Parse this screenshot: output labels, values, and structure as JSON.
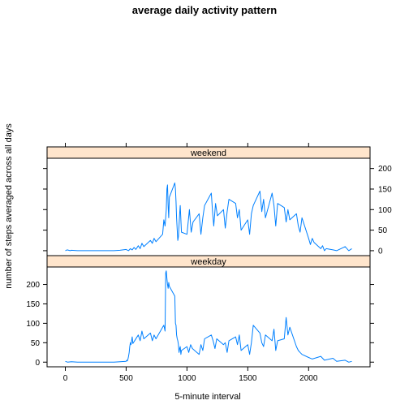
{
  "chart_data": {
    "type": "line",
    "title": "average daily activity pattern",
    "xlabel": "5-minute interval",
    "ylabel": "number of steps averaged across all days",
    "xlim": [
      -150,
      2505
    ],
    "xticks": [
      0,
      500,
      1000,
      1500,
      2000
    ],
    "yticks": [
      0,
      50,
      100,
      150,
      200
    ],
    "panels": [
      {
        "name": "weekend",
        "ylim": [
          -12,
          225
        ],
        "tick_side": "right",
        "x": [
          0,
          15,
          40,
          50,
          100,
          200,
          300,
          400,
          450,
          500,
          520,
          535,
          550,
          565,
          580,
          600,
          615,
          630,
          645,
          700,
          715,
          730,
          745,
          800,
          810,
          820,
          830,
          835,
          840,
          845,
          850,
          855,
          900,
          905,
          910,
          915,
          920,
          925,
          930,
          935,
          940,
          945,
          950,
          955,
          1000,
          1010,
          1020,
          1035,
          1050,
          1100,
          1115,
          1130,
          1145,
          1200,
          1210,
          1220,
          1235,
          1250,
          1300,
          1315,
          1330,
          1345,
          1400,
          1415,
          1430,
          1445,
          1500,
          1515,
          1530,
          1545,
          1600,
          1615,
          1630,
          1645,
          1700,
          1715,
          1730,
          1745,
          1800,
          1815,
          1830,
          1845,
          1900,
          1915,
          1930,
          1945,
          2000,
          2015,
          2030,
          2045,
          2100,
          2115,
          2130,
          2145,
          2200,
          2230,
          2300,
          2330,
          2355
        ],
        "y": [
          0,
          2,
          0,
          1,
          0,
          0,
          0,
          0,
          1,
          3,
          0,
          5,
          2,
          8,
          3,
          12,
          5,
          18,
          10,
          25,
          18,
          30,
          22,
          40,
          75,
          60,
          100,
          150,
          160,
          110,
          80,
          130,
          165,
          150,
          120,
          80,
          50,
          25,
          35,
          60,
          90,
          110,
          75,
          45,
          40,
          70,
          100,
          45,
          70,
          90,
          40,
          80,
          110,
          140,
          95,
          60,
          115,
          85,
          100,
          55,
          95,
          125,
          115,
          80,
          100,
          50,
          75,
          40,
          90,
          110,
          145,
          95,
          125,
          80,
          140,
          110,
          60,
          115,
          105,
          70,
          100,
          75,
          90,
          60,
          45,
          80,
          30,
          15,
          30,
          20,
          5,
          12,
          0,
          5,
          2,
          0,
          10,
          0,
          5
        ]
      },
      {
        "name": "weekday",
        "ylim": [
          -12,
          245
        ],
        "tick_side": "left",
        "x": [
          0,
          20,
          50,
          100,
          200,
          300,
          400,
          450,
          500,
          505,
          510,
          515,
          520,
          525,
          530,
          535,
          540,
          545,
          550,
          555,
          600,
          615,
          630,
          645,
          700,
          715,
          730,
          745,
          800,
          810,
          820,
          825,
          830,
          835,
          840,
          845,
          850,
          855,
          900,
          905,
          910,
          915,
          920,
          925,
          930,
          935,
          940,
          945,
          950,
          955,
          1000,
          1015,
          1030,
          1045,
          1100,
          1115,
          1130,
          1145,
          1200,
          1215,
          1230,
          1245,
          1300,
          1315,
          1330,
          1345,
          1400,
          1415,
          1430,
          1445,
          1500,
          1515,
          1530,
          1545,
          1600,
          1615,
          1630,
          1645,
          1700,
          1715,
          1730,
          1745,
          1800,
          1815,
          1830,
          1845,
          1900,
          1915,
          1930,
          1945,
          2000,
          2030,
          2100,
          2130,
          2200,
          2230,
          2300,
          2330,
          2355
        ],
        "y": [
          2,
          0,
          1,
          0,
          0,
          0,
          0,
          1,
          2,
          5,
          3,
          8,
          15,
          25,
          40,
          50,
          45,
          55,
          65,
          48,
          70,
          55,
          80,
          60,
          75,
          55,
          70,
          60,
          90,
          95,
          80,
          230,
          235,
          215,
          200,
          190,
          205,
          195,
          170,
          100,
          95,
          70,
          60,
          55,
          45,
          25,
          35,
          40,
          20,
          30,
          40,
          25,
          45,
          35,
          20,
          45,
          30,
          60,
          70,
          55,
          35,
          60,
          45,
          50,
          25,
          55,
          65,
          45,
          70,
          30,
          45,
          20,
          50,
          95,
          75,
          50,
          40,
          70,
          55,
          85,
          30,
          55,
          60,
          115,
          70,
          90,
          40,
          30,
          25,
          20,
          12,
          8,
          15,
          5,
          10,
          2,
          5,
          0,
          2
        ]
      }
    ],
    "colors": {
      "series": "#0080ff",
      "strip_fill": "#ffe5cc",
      "frame": "#000000"
    }
  }
}
